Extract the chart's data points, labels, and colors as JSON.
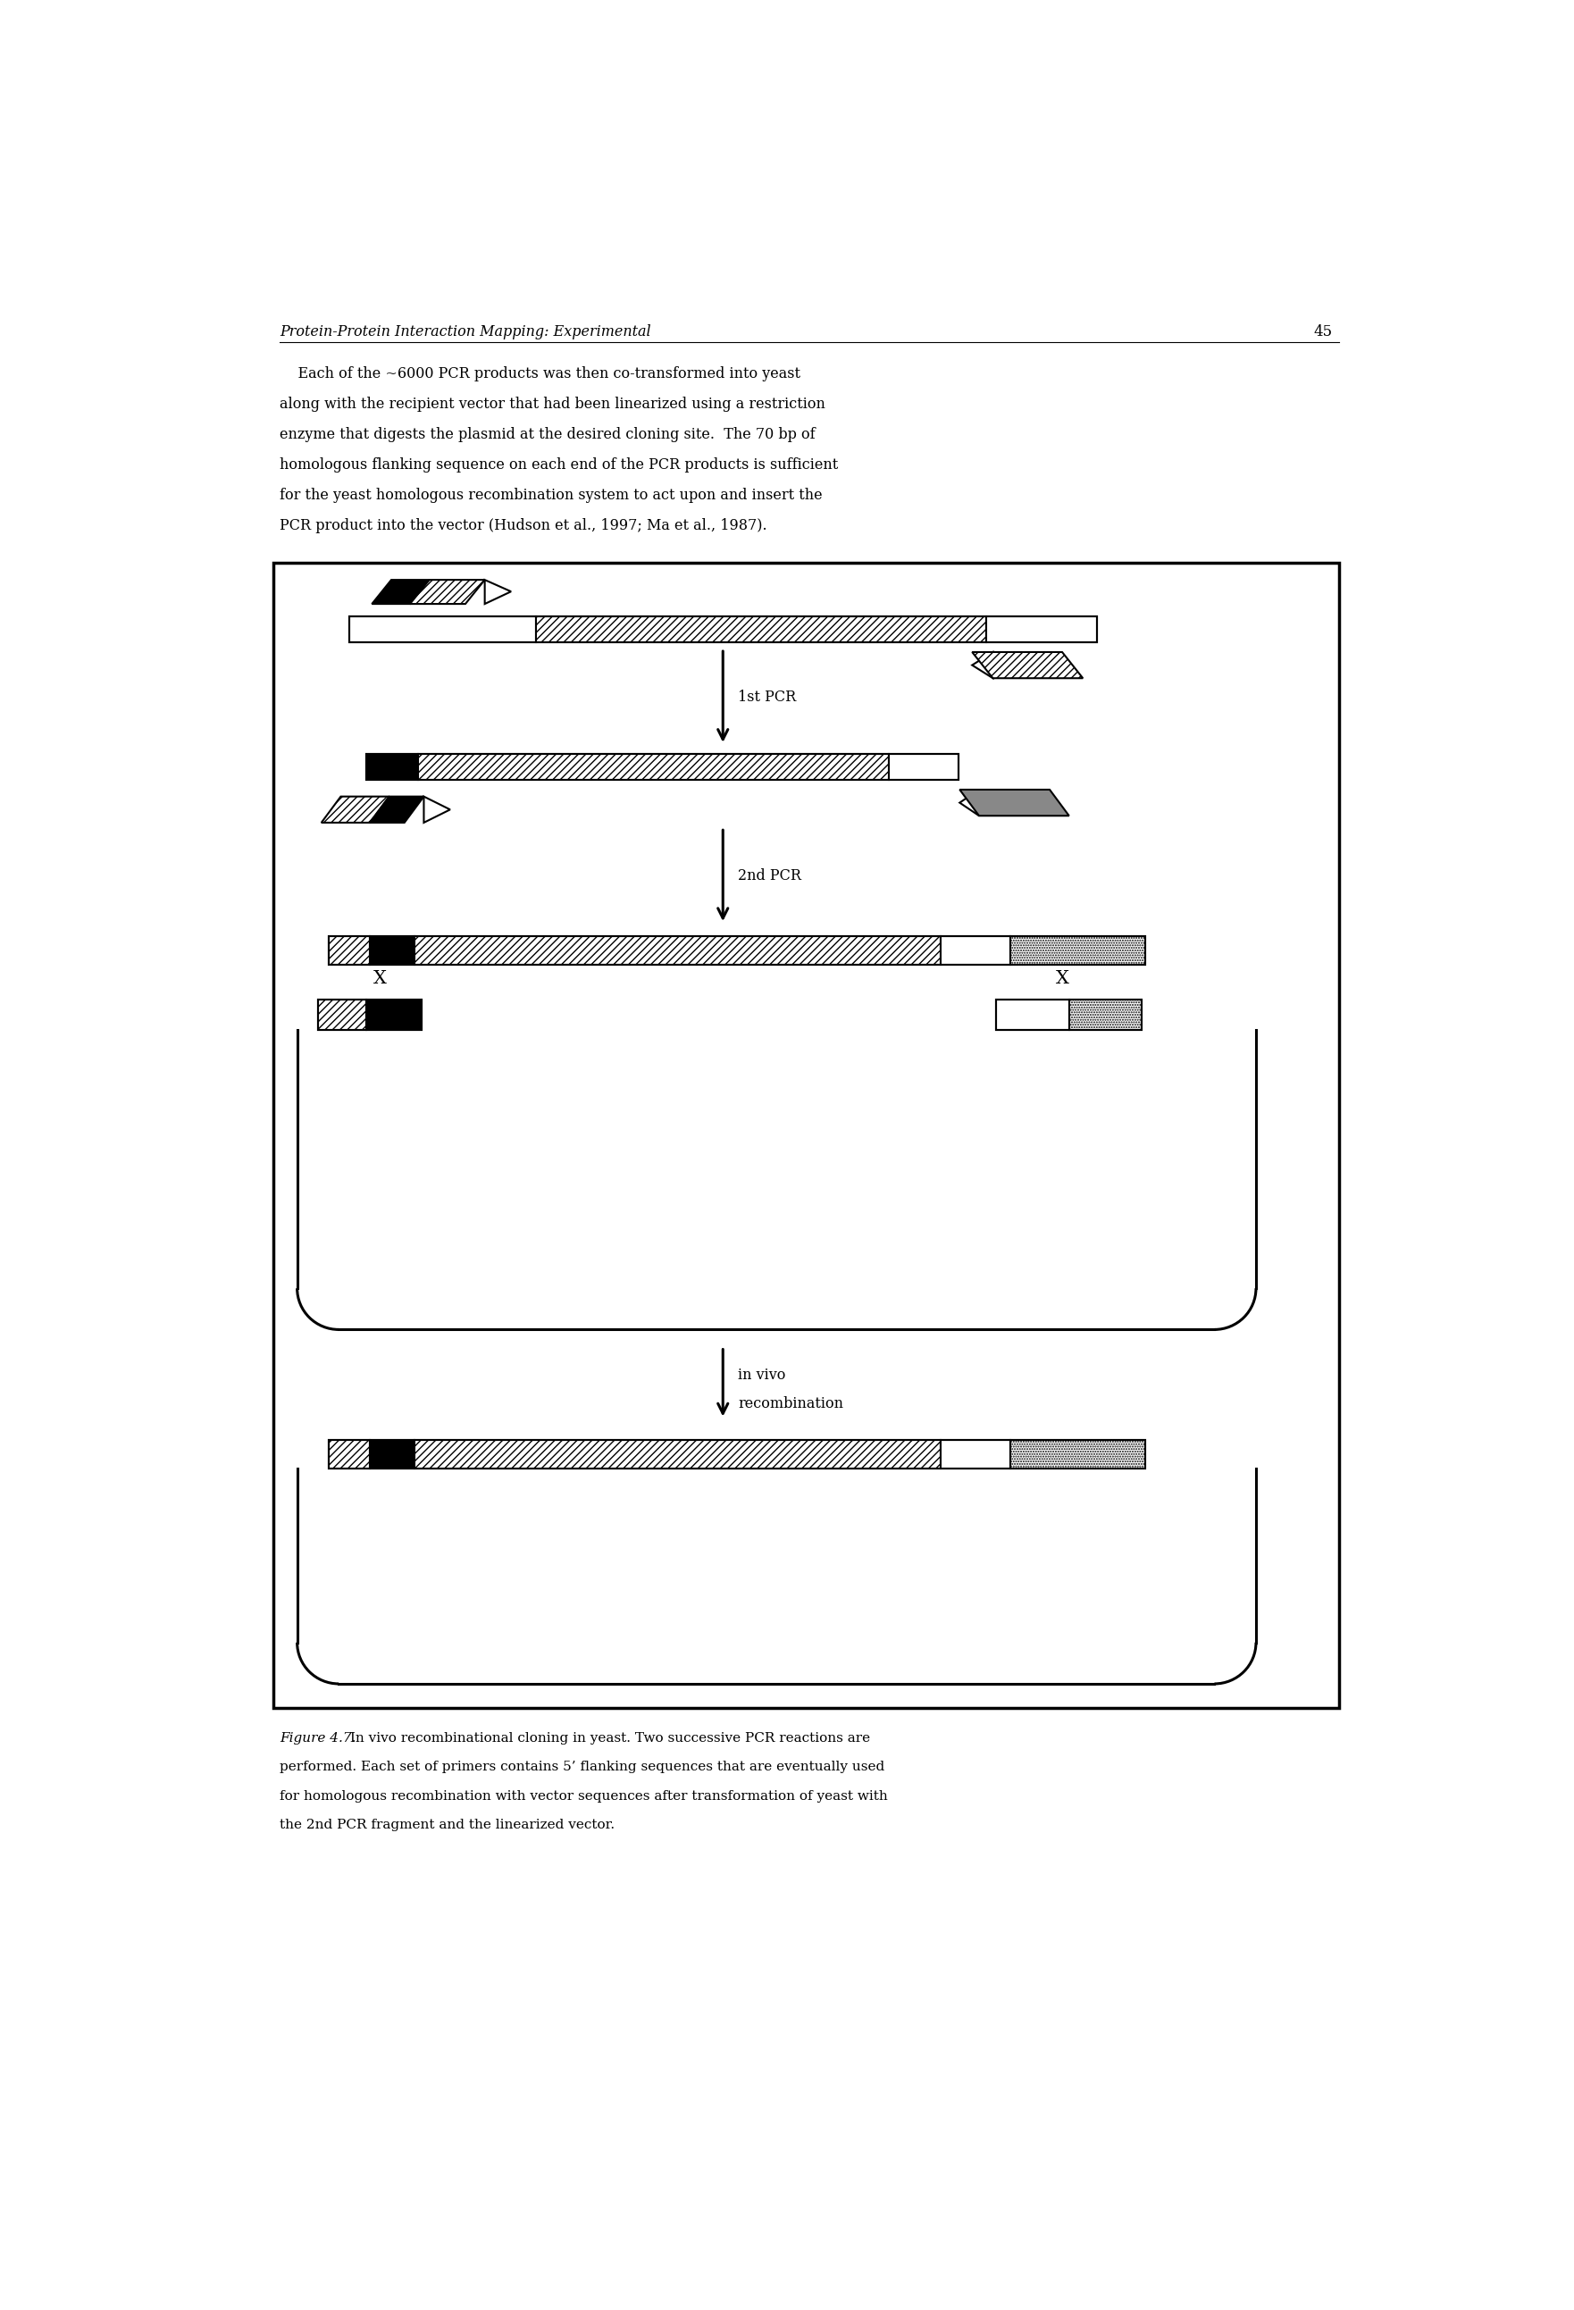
{
  "page_header": "Protein-Protein Interaction Mapping: Experimental",
  "page_number": "45",
  "body_text_lines": [
    "    Each of the ~6000 PCR products was then co-transformed into yeast",
    "along with the recipient vector that had been linearized using a restriction",
    "enzyme that digests the plasmid at the desired cloning site.  The 70 bp of",
    "homologous flanking sequence on each end of the PCR products is sufficient",
    "for the yeast homologous recombination system to act upon and insert the",
    "PCR product into the vector (Hudson et al., 1997; Ma et al., 1987)."
  ],
  "caption_italic": "Figure 4.7.",
  "caption_normal": " In vivo recombinational cloning in yeast. Two successive PCR reactions are",
  "caption_lines": [
    "performed. Each set of primers contains 5’ flanking sequences that are eventually used",
    "for homologous recombination with vector sequences after transformation of yeast with",
    "the 2nd PCR fragment and the linearized vector."
  ],
  "bg_color": "#ffffff",
  "text_color": "#000000"
}
